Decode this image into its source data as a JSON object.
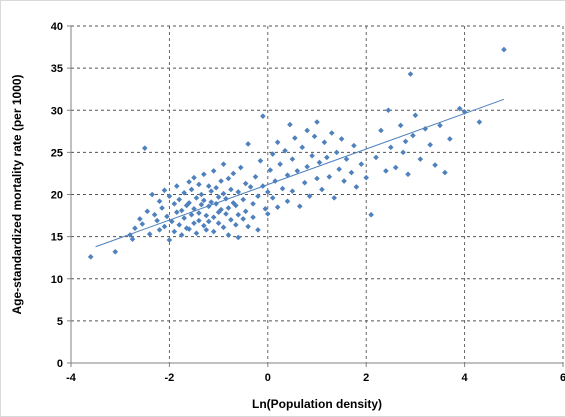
{
  "chart_data": {
    "type": "scatter",
    "title": "",
    "xlabel": "Ln(Population density)",
    "ylabel": "Age-standardized mortality rate (per 1000)",
    "xlim": [
      -4,
      6
    ],
    "ylim": [
      0,
      40
    ],
    "xticks": [
      -4,
      -2,
      0,
      2,
      4,
      6
    ],
    "yticks": [
      0,
      5,
      10,
      15,
      20,
      25,
      30,
      35,
      40
    ],
    "grid": true,
    "legend": "none",
    "marker_color": "#4f81bd",
    "trendline_color": "#4f81bd",
    "trendline": {
      "x": [
        -3.5,
        4.8
      ],
      "y": [
        13.8,
        31.3
      ]
    },
    "series": [
      {
        "points": [
          [
            -3.6,
            12.6
          ],
          [
            -3.1,
            13.2
          ],
          [
            -2.8,
            15.2
          ],
          [
            -2.75,
            14.7
          ],
          [
            -2.7,
            16.0
          ],
          [
            -2.6,
            17.1
          ],
          [
            -2.55,
            16.5
          ],
          [
            -2.5,
            25.5
          ],
          [
            -2.45,
            18.0
          ],
          [
            -2.4,
            15.3
          ],
          [
            -2.35,
            20.0
          ],
          [
            -2.3,
            17.6
          ],
          [
            -2.25,
            16.9
          ],
          [
            -2.2,
            19.2
          ],
          [
            -2.2,
            15.8
          ],
          [
            -2.15,
            18.4
          ],
          [
            -2.1,
            16.2
          ],
          [
            -2.1,
            20.5
          ],
          [
            -2.05,
            17.4
          ],
          [
            -2.0,
            14.6
          ],
          [
            -2.0,
            19.8
          ],
          [
            -1.95,
            16.8
          ],
          [
            -1.9,
            18.9
          ],
          [
            -1.9,
            15.6
          ],
          [
            -1.85,
            21.0
          ],
          [
            -1.85,
            17.9
          ],
          [
            -1.8,
            16.4
          ],
          [
            -1.8,
            19.4
          ],
          [
            -1.75,
            18.1
          ],
          [
            -1.75,
            15.2
          ],
          [
            -1.7,
            20.2
          ],
          [
            -1.7,
            17.2
          ],
          [
            -1.65,
            16.0
          ],
          [
            -1.65,
            18.7
          ],
          [
            -1.6,
            21.5
          ],
          [
            -1.6,
            19.0
          ],
          [
            -1.6,
            15.9
          ],
          [
            -1.55,
            17.6
          ],
          [
            -1.55,
            20.6
          ],
          [
            -1.5,
            16.6
          ],
          [
            -1.5,
            18.3
          ],
          [
            -1.5,
            22.0
          ],
          [
            -1.45,
            19.6
          ],
          [
            -1.45,
            15.4
          ],
          [
            -1.4,
            17.8
          ],
          [
            -1.4,
            21.2
          ],
          [
            -1.4,
            16.9
          ],
          [
            -1.35,
            18.8
          ],
          [
            -1.35,
            20.0
          ],
          [
            -1.3,
            16.3
          ],
          [
            -1.3,
            22.4
          ],
          [
            -1.3,
            19.3
          ],
          [
            -1.25,
            17.5
          ],
          [
            -1.25,
            15.8
          ],
          [
            -1.2,
            21.0
          ],
          [
            -1.2,
            18.6
          ],
          [
            -1.2,
            16.8
          ],
          [
            -1.15,
            20.4
          ],
          [
            -1.15,
            19.1
          ],
          [
            -1.1,
            17.3
          ],
          [
            -1.1,
            15.6
          ],
          [
            -1.1,
            22.8
          ],
          [
            -1.05,
            18.9
          ],
          [
            -1.05,
            20.8
          ],
          [
            -1.0,
            16.6
          ],
          [
            -1.0,
            19.7
          ],
          [
            -1.0,
            17.9
          ],
          [
            -0.95,
            21.6
          ],
          [
            -0.95,
            18.2
          ],
          [
            -0.9,
            16.1
          ],
          [
            -0.9,
            20.1
          ],
          [
            -0.9,
            23.6
          ],
          [
            -0.85,
            17.7
          ],
          [
            -0.85,
            19.5
          ],
          [
            -0.8,
            15.2
          ],
          [
            -0.8,
            21.9
          ],
          [
            -0.8,
            18.4
          ],
          [
            -0.75,
            17.0
          ],
          [
            -0.75,
            20.6
          ],
          [
            -0.7,
            19.0
          ],
          [
            -0.7,
            22.5
          ],
          [
            -0.65,
            16.4
          ],
          [
            -0.65,
            18.7
          ],
          [
            -0.6,
            20.3
          ],
          [
            -0.6,
            17.6
          ],
          [
            -0.6,
            14.9
          ],
          [
            -0.55,
            23.2
          ],
          [
            -0.5,
            19.4
          ],
          [
            -0.5,
            17.1
          ],
          [
            -0.45,
            21.3
          ],
          [
            -0.45,
            18.0
          ],
          [
            -0.4,
            26.0
          ],
          [
            -0.4,
            16.2
          ],
          [
            -0.35,
            20.9
          ],
          [
            -0.3,
            18.9
          ],
          [
            -0.3,
            17.3
          ],
          [
            -0.25,
            22.1
          ],
          [
            -0.2,
            19.8
          ],
          [
            -0.2,
            15.8
          ],
          [
            -0.15,
            24.0
          ],
          [
            -0.1,
            29.3
          ],
          [
            -0.1,
            21.0
          ],
          [
            -0.05,
            18.3
          ],
          [
            0.0,
            20.3
          ],
          [
            0.0,
            17.7
          ],
          [
            0.05,
            22.9
          ],
          [
            0.1,
            24.8
          ],
          [
            0.1,
            19.6
          ],
          [
            0.15,
            21.6
          ],
          [
            0.2,
            26.2
          ],
          [
            0.2,
            18.5
          ],
          [
            0.25,
            23.6
          ],
          [
            0.3,
            20.7
          ],
          [
            0.35,
            25.2
          ],
          [
            0.4,
            22.3
          ],
          [
            0.4,
            19.2
          ],
          [
            0.45,
            28.3
          ],
          [
            0.5,
            24.2
          ],
          [
            0.5,
            20.4
          ],
          [
            0.55,
            26.7
          ],
          [
            0.6,
            22.8
          ],
          [
            0.65,
            18.6
          ],
          [
            0.7,
            25.6
          ],
          [
            0.75,
            21.4
          ],
          [
            0.8,
            27.6
          ],
          [
            0.8,
            23.3
          ],
          [
            0.85,
            19.8
          ],
          [
            0.9,
            24.6
          ],
          [
            0.95,
            26.9
          ],
          [
            1.0,
            21.9
          ],
          [
            1.0,
            28.6
          ],
          [
            1.05,
            23.8
          ],
          [
            1.1,
            20.6
          ],
          [
            1.15,
            26.2
          ],
          [
            1.2,
            24.4
          ],
          [
            1.25,
            22.1
          ],
          [
            1.3,
            27.3
          ],
          [
            1.35,
            19.6
          ],
          [
            1.4,
            25.0
          ],
          [
            1.45,
            23.0
          ],
          [
            1.5,
            26.6
          ],
          [
            1.55,
            21.6
          ],
          [
            1.6,
            24.2
          ],
          [
            1.7,
            22.6
          ],
          [
            1.75,
            25.8
          ],
          [
            1.8,
            20.9
          ],
          [
            1.9,
            23.6
          ],
          [
            2.0,
            22.0
          ],
          [
            2.1,
            17.6
          ],
          [
            2.2,
            24.4
          ],
          [
            2.3,
            27.6
          ],
          [
            2.4,
            22.8
          ],
          [
            2.45,
            30.0
          ],
          [
            2.5,
            25.6
          ],
          [
            2.6,
            23.2
          ],
          [
            2.7,
            28.2
          ],
          [
            2.75,
            25.0
          ],
          [
            2.8,
            26.3
          ],
          [
            2.85,
            22.4
          ],
          [
            2.9,
            34.3
          ],
          [
            2.95,
            27.0
          ],
          [
            3.0,
            29.4
          ],
          [
            3.1,
            24.2
          ],
          [
            3.2,
            27.8
          ],
          [
            3.3,
            25.9
          ],
          [
            3.4,
            23.5
          ],
          [
            3.5,
            28.2
          ],
          [
            3.6,
            22.6
          ],
          [
            3.7,
            26.6
          ],
          [
            3.9,
            30.2
          ],
          [
            4.0,
            29.8
          ],
          [
            4.3,
            28.6
          ],
          [
            4.8,
            37.2
          ]
        ]
      }
    ]
  }
}
